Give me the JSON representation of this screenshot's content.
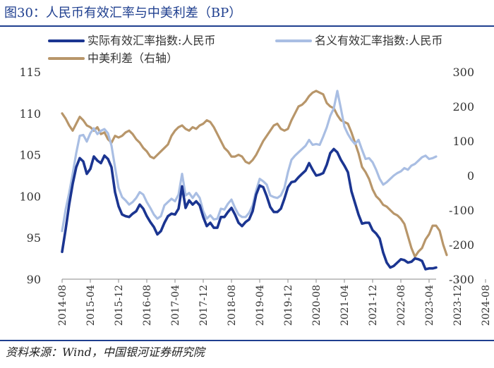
{
  "chart_title": "图30：人民币有效汇率与中美利差（BP）",
  "source": "资料来源：Wind，中国银河证券研究院",
  "chart_data": {
    "type": "line",
    "title": "图30：人民币有效汇率与中美利差（BP）",
    "x_start": "2014-08",
    "x_step_months": 1,
    "x_tick_labels": [
      "2014-08",
      "2015-04",
      "2015-12",
      "2016-08",
      "2017-04",
      "2017-12",
      "2018-08",
      "2019-04",
      "2019-12",
      "2020-08",
      "2021-04",
      "2021-12",
      "2022-08",
      "2023-04",
      "2023-12",
      "2024-08"
    ],
    "y_left": {
      "range": [
        90,
        115
      ],
      "ticks": [
        "90",
        "95",
        "100",
        "105",
        "110",
        "115"
      ]
    },
    "y_right": {
      "range": [
        -300,
        300
      ],
      "ticks": [
        "-300",
        "-200",
        "-100",
        "0",
        "100",
        "200",
        "300"
      ]
    },
    "series": [
      {
        "name": "实际有效汇率指数:人民币",
        "axis": "left",
        "color": "#1b3591",
        "values": [
          93.3,
          96.0,
          99.0,
          101.5,
          103.5,
          104.6,
          104.2,
          102.7,
          103.3,
          104.8,
          104.3,
          104.0,
          104.9,
          104.5,
          103.5,
          100.5,
          98.8,
          97.8,
          97.6,
          97.5,
          97.9,
          98.2,
          99.0,
          98.5,
          97.6,
          96.9,
          96.3,
          95.4,
          95.8,
          96.8,
          97.6,
          97.9,
          97.8,
          98.5,
          101.2,
          98.6,
          99.5,
          99.0,
          99.4,
          98.9,
          97.5,
          96.4,
          96.8,
          96.2,
          96.2,
          97.5,
          97.5,
          98.1,
          98.6,
          97.8,
          96.8,
          96.4,
          96.9,
          97.2,
          98.2,
          100.2,
          101.3,
          101.1,
          100.0,
          98.7,
          98.1,
          98.1,
          98.5,
          99.7,
          101.1,
          101.7,
          101.8,
          102.3,
          102.7,
          103.1,
          104.0,
          103.2,
          102.5,
          102.6,
          102.8,
          103.8,
          105.2,
          105.7,
          105.3,
          104.4,
          103.7,
          102.9,
          100.6,
          99.2,
          97.8,
          96.7,
          96.8,
          96.8,
          95.9,
          95.5,
          94.9,
          93.2,
          92.0,
          91.4,
          91.6,
          92.0,
          92.4,
          92.3,
          92.0,
          92.1,
          92.5,
          92.4,
          92.2,
          91.2,
          91.3,
          91.3,
          91.4
        ]
      },
      {
        "name": "名义有效汇率指数:人民币",
        "axis": "left",
        "color": "#a9bee3",
        "values": [
          95.8,
          98.4,
          100.4,
          102.7,
          105.2,
          107.3,
          107.4,
          106.6,
          107.6,
          108.2,
          107.5,
          107.9,
          108.1,
          107.6,
          106.1,
          103.5,
          101.0,
          99.9,
          99.5,
          99.0,
          99.3,
          99.8,
          100.5,
          100.2,
          99.3,
          98.6,
          97.8,
          97.3,
          97.6,
          98.9,
          99.3,
          99.7,
          99.4,
          100.2,
          102.7,
          100.1,
          100.4,
          99.8,
          100.4,
          99.8,
          98.2,
          97.3,
          97.7,
          97.2,
          97.3,
          98.5,
          98.4,
          99.1,
          99.6,
          98.6,
          97.8,
          97.5,
          97.5,
          98.0,
          98.9,
          100.7,
          102.1,
          101.8,
          101.4,
          100.1,
          99.9,
          99.8,
          100.1,
          101.0,
          102.9,
          104.4,
          104.9,
          105.3,
          105.7,
          106.1,
          106.8,
          106.2,
          106.3,
          106.2,
          107.2,
          108.3,
          109.7,
          110.6,
          112.7,
          110.6,
          108.4,
          107.5,
          106.8,
          106.3,
          106.8,
          105.6,
          104.5,
          104.6,
          104.1,
          103.2,
          102.1,
          101.4,
          101.7,
          102.1,
          102.5,
          102.8,
          103.0,
          103.4,
          103.2,
          103.7,
          103.9,
          104.3,
          104.7,
          104.9,
          104.5,
          104.6,
          104.8
        ]
      },
      {
        "name": "中美利差（右轴）",
        "axis": "right",
        "color": "#b8966a",
        "values": [
          180,
          165,
          145,
          130,
          150,
          170,
          160,
          145,
          140,
          130,
          140,
          120,
          125,
          105,
          95,
          115,
          110,
          115,
          125,
          130,
          120,
          105,
          95,
          80,
          70,
          55,
          50,
          60,
          70,
          80,
          90,
          115,
          130,
          140,
          145,
          135,
          130,
          140,
          135,
          145,
          150,
          160,
          155,
          140,
          120,
          100,
          80,
          70,
          55,
          55,
          60,
          55,
          40,
          35,
          45,
          60,
          80,
          100,
          115,
          130,
          145,
          150,
          135,
          130,
          135,
          160,
          180,
          200,
          205,
          215,
          230,
          240,
          245,
          240,
          235,
          210,
          200,
          195,
          175,
          160,
          155,
          150,
          125,
          95,
          65,
          25,
          10,
          -10,
          -40,
          -60,
          -70,
          -85,
          -90,
          -100,
          -110,
          -115,
          -125,
          -140,
          -175,
          -210,
          -235,
          -220,
          -210,
          -185,
          -170,
          -145,
          -145,
          -160,
          -200,
          -230
        ]
      }
    ]
  }
}
